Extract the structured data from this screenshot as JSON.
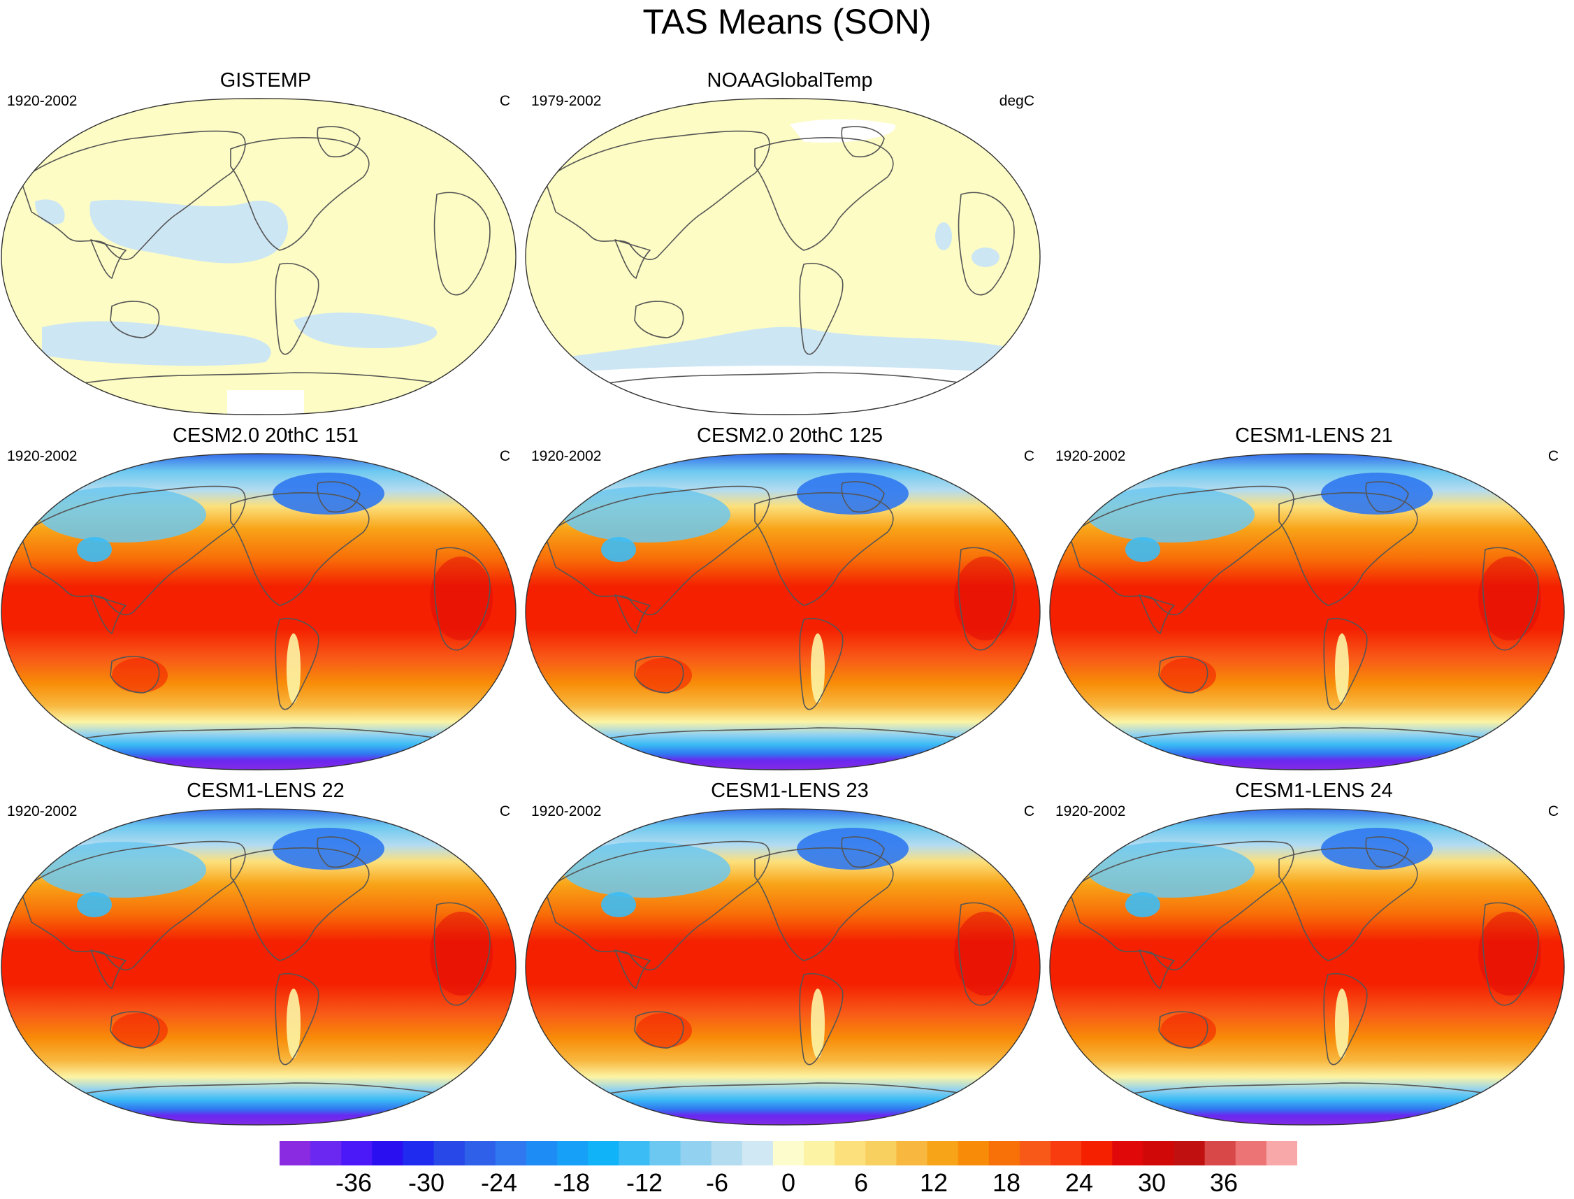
{
  "title": "TAS Means (SON)",
  "panels": [
    {
      "title": "GISTEMP",
      "years": "1920-2002",
      "units": "C",
      "style": "obs_pale",
      "antarctic_gap": "small"
    },
    {
      "title": "NOAAGlobalTemp",
      "years": "1979-2002",
      "units": "degC",
      "style": "obs_pale",
      "antarctic_gap": "large"
    },
    {
      "title": "CESM2.0 20thC 151",
      "years": "1920-2002",
      "units": "C",
      "style": "model"
    },
    {
      "title": "CESM2.0 20thC 125",
      "years": "1920-2002",
      "units": "C",
      "style": "model"
    },
    {
      "title": "CESM1-LENS 21",
      "years": "1920-2002",
      "units": "C",
      "style": "model"
    },
    {
      "title": "CESM1-LENS 22",
      "years": "1920-2002",
      "units": "C",
      "style": "model"
    },
    {
      "title": "CESM1-LENS 23",
      "years": "1920-2002",
      "units": "C",
      "style": "model"
    },
    {
      "title": "CESM1-LENS 24",
      "years": "1920-2002",
      "units": "C",
      "style": "model"
    }
  ],
  "colorbar": {
    "tick_labels": [
      "-36",
      "-30",
      "-24",
      "-18",
      "-12",
      "-6",
      "0",
      "6",
      "12",
      "18",
      "24",
      "30",
      "36"
    ],
    "tick_values": [
      -36,
      -30,
      -24,
      -18,
      -12,
      -6,
      0,
      6,
      12,
      18,
      24,
      30,
      36
    ],
    "levels_min": -42,
    "levels_max": 42,
    "level_step": 3,
    "colors": [
      "#8a2be2",
      "#6a28f0",
      "#4b18f8",
      "#2a10f0",
      "#1f2cf0",
      "#2848e8",
      "#2e60ea",
      "#2f78f0",
      "#1e8cf5",
      "#16a0f8",
      "#10b2f8",
      "#3cbcf5",
      "#6cc8f0",
      "#92d2f0",
      "#b4dcf0",
      "#d0e8f4",
      "#fcfccc",
      "#fcf4a4",
      "#fce07c",
      "#f8d060",
      "#f8b840",
      "#f8a418",
      "#f88c08",
      "#f87008",
      "#f85818",
      "#f83c10",
      "#f42000",
      "#e00808",
      "#d00808",
      "#c01010",
      "#d84848",
      "#ec7474",
      "#f8a8a8"
    ]
  }
}
